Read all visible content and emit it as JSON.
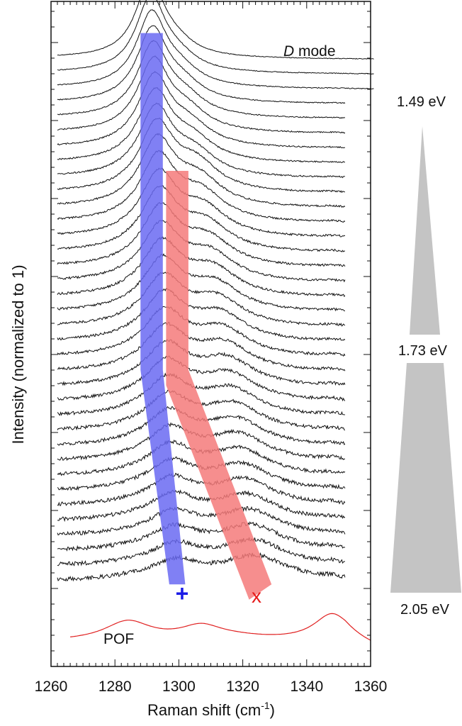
{
  "chart_data": {
    "type": "line",
    "title": "",
    "xlabel": "Raman shift (cm",
    "xlabel_sup": "-1",
    "xlabel_end": ")",
    "ylabel": "Intensity (normalized to 1)",
    "xlim": [
      1260,
      1360
    ],
    "x_ticks": [
      "1260",
      "1280",
      "1300",
      "1320",
      "1340",
      "1360"
    ],
    "grid": false,
    "y_ticks_labeled": false,
    "n_spectra": 36,
    "annotations": {
      "mode_label_italic": "D",
      "mode_label_rest": " mode",
      "pof_label": "POF",
      "plus_marker": "+",
      "x_marker": "x"
    },
    "energy_scale": {
      "labels": [
        "1.49 eV",
        "1.73 eV",
        "2.05 eV"
      ],
      "values_eV": [
        1.49,
        1.73,
        2.05
      ]
    },
    "peak_plus": {
      "color": "#6a6af2",
      "path": [
        [
          1288,
          1
        ],
        [
          1295,
          1
        ],
        [
          1295,
          23
        ],
        [
          1302,
          37
        ],
        [
          1297,
          37
        ],
        [
          1288,
          23
        ]
      ]
    },
    "peak_x": {
      "color": "#f47a7a",
      "path": [
        [
          1296,
          10
        ],
        [
          1303,
          10
        ],
        [
          1303,
          23
        ],
        [
          1329,
          37
        ],
        [
          1322,
          38
        ],
        [
          1296,
          24
        ]
      ]
    },
    "peak_positions": {
      "plus_cm1_start": 1291,
      "plus_cm1_end": 1299,
      "x_cm1_start": 1299,
      "x_cm1_end": 1324
    },
    "pof_spectrum": {
      "color": "#e02020",
      "peaks_cm1": [
        1284,
        1307,
        1348
      ]
    },
    "series_color": "#111111"
  }
}
